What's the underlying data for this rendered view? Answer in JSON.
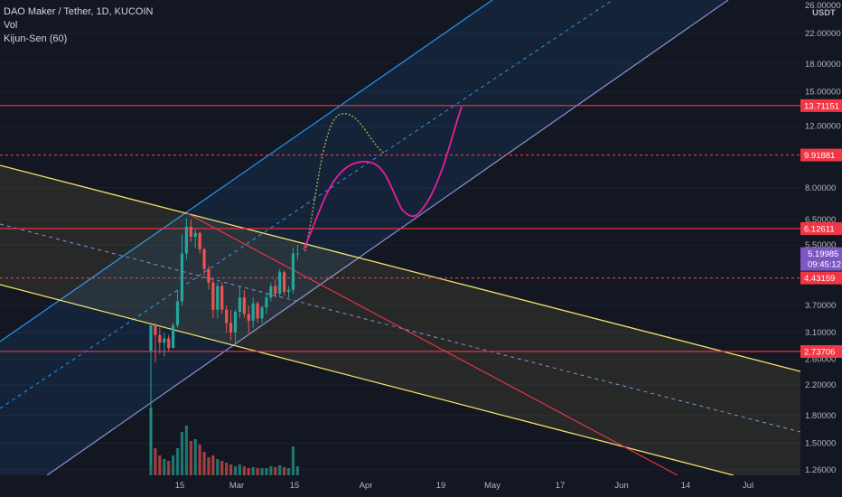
{
  "legend": {
    "symbol": "DAO Maker / Tether, 1D, KUCOIN",
    "vol": "Vol",
    "kijun": "Kijun-Sen (60)"
  },
  "colors": {
    "background": "#131722",
    "up": "#26a69a",
    "down": "#ef5350",
    "channel_blue": "#2196f3",
    "channel_lav": "#8c8fd6",
    "channel_yellow": "#f7e16b",
    "red_line": "#f23645",
    "path_pink": "#e91e9c",
    "path_olive": "#a8a04a",
    "price_tag": "#7e57c2"
  },
  "chart_data": {
    "type": "candlestick",
    "price_axis": {
      "unit": "USDT",
      "scale": "log",
      "ticks": [
        "22.00000",
        "18.00000",
        "15.00000",
        "12.00000",
        "8.00000",
        "6.50000",
        "5.50000",
        "3.70000",
        "3.10000",
        "2.60000",
        "2.20000",
        "1.80000",
        "1.50000",
        "1.26000"
      ],
      "clipped_top_tick": "26.00000"
    },
    "time_axis": {
      "ticks": [
        "15",
        "Mar",
        "15",
        "Apr",
        "19",
        "May",
        "17",
        "Jun",
        "14",
        "Jul"
      ]
    },
    "horizontal_levels": [
      {
        "value": 13.71151,
        "label": "13.71151",
        "style": "solid"
      },
      {
        "value": 9.91881,
        "label": "9.91881",
        "style": "dashed"
      },
      {
        "value": 6.12611,
        "label": "6.12611",
        "style": "solid"
      },
      {
        "value": 4.43159,
        "label": "4.43159",
        "style": "dashed"
      },
      {
        "value": 2.73706,
        "label": "2.73706",
        "style": "solid"
      }
    ],
    "current_price": {
      "value": 5.19985,
      "label": "5.19985",
      "countdown": "09:45:12"
    },
    "candles": [
      {
        "o": 2.75,
        "h": 3.25,
        "l": 1.3,
        "c": 3.25
      },
      {
        "o": 3.25,
        "h": 3.3,
        "l": 2.55,
        "c": 3.05
      },
      {
        "o": 3.05,
        "h": 3.2,
        "l": 2.7,
        "c": 2.9
      },
      {
        "o": 2.9,
        "h": 3.1,
        "l": 2.65,
        "c": 2.98
      },
      {
        "o": 2.98,
        "h": 3.05,
        "l": 2.75,
        "c": 2.8
      },
      {
        "o": 2.8,
        "h": 3.3,
        "l": 2.8,
        "c": 3.25
      },
      {
        "o": 3.25,
        "h": 4.1,
        "l": 3.2,
        "c": 3.8
      },
      {
        "o": 3.8,
        "h": 5.9,
        "l": 3.7,
        "c": 5.2
      },
      {
        "o": 5.2,
        "h": 6.55,
        "l": 5.0,
        "c": 6.2
      },
      {
        "o": 6.2,
        "h": 6.5,
        "l": 5.6,
        "c": 5.8
      },
      {
        "o": 5.8,
        "h": 6.1,
        "l": 5.4,
        "c": 5.95
      },
      {
        "o": 5.95,
        "h": 6.0,
        "l": 5.2,
        "c": 5.35
      },
      {
        "o": 5.35,
        "h": 5.4,
        "l": 4.5,
        "c": 4.7
      },
      {
        "o": 4.7,
        "h": 4.8,
        "l": 4.1,
        "c": 4.3
      },
      {
        "o": 4.3,
        "h": 4.4,
        "l": 3.4,
        "c": 3.6
      },
      {
        "o": 3.6,
        "h": 4.3,
        "l": 3.4,
        "c": 4.2
      },
      {
        "o": 4.2,
        "h": 4.3,
        "l": 3.5,
        "c": 3.6
      },
      {
        "o": 3.6,
        "h": 3.7,
        "l": 3.1,
        "c": 3.3
      },
      {
        "o": 3.3,
        "h": 3.6,
        "l": 2.95,
        "c": 3.1
      },
      {
        "o": 3.1,
        "h": 3.6,
        "l": 2.9,
        "c": 3.55
      },
      {
        "o": 3.55,
        "h": 4.2,
        "l": 3.4,
        "c": 3.9
      },
      {
        "o": 3.9,
        "h": 4.1,
        "l": 3.4,
        "c": 3.5
      },
      {
        "o": 3.5,
        "h": 3.7,
        "l": 3.1,
        "c": 3.35
      },
      {
        "o": 3.35,
        "h": 3.9,
        "l": 3.2,
        "c": 3.75
      },
      {
        "o": 3.75,
        "h": 3.8,
        "l": 3.3,
        "c": 3.4
      },
      {
        "o": 3.4,
        "h": 3.7,
        "l": 3.3,
        "c": 3.65
      },
      {
        "o": 3.65,
        "h": 4.0,
        "l": 3.5,
        "c": 3.9
      },
      {
        "o": 3.9,
        "h": 4.3,
        "l": 3.8,
        "c": 4.2
      },
      {
        "o": 4.2,
        "h": 4.4,
        "l": 3.9,
        "c": 4.0
      },
      {
        "o": 4.0,
        "h": 4.7,
        "l": 3.9,
        "c": 4.6
      },
      {
        "o": 4.6,
        "h": 4.65,
        "l": 3.95,
        "c": 4.05
      },
      {
        "o": 4.05,
        "h": 4.2,
        "l": 3.9,
        "c": 4.1
      },
      {
        "o": 4.1,
        "h": 5.4,
        "l": 4.0,
        "c": 5.2
      },
      {
        "o": 5.2,
        "h": 5.5,
        "l": 5.0,
        "c": 5.2
      }
    ],
    "volume": [
      75,
      30,
      22,
      18,
      16,
      22,
      30,
      48,
      55,
      38,
      40,
      34,
      26,
      20,
      22,
      18,
      16,
      14,
      12,
      10,
      12,
      10,
      8,
      9,
      8,
      8,
      8,
      10,
      9,
      11,
      9,
      8,
      32,
      10
    ]
  }
}
